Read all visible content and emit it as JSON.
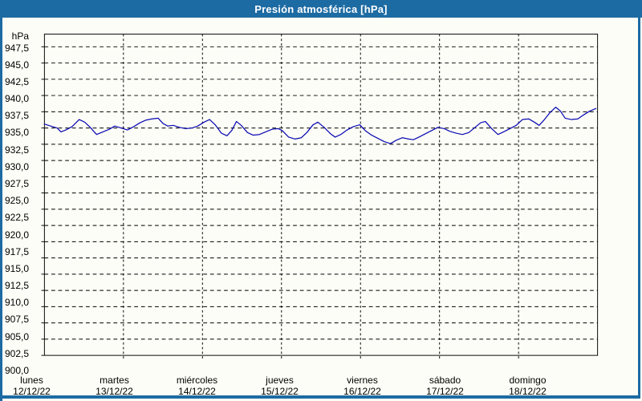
{
  "window": {
    "title": "Presión atmosférica [hPa]"
  },
  "colors": {
    "titlebar_bg": "#1d6ba3",
    "titlebar_text": "#ffffff",
    "panel_border": "#1d6ba3",
    "panel_bg": "#fdfdf7",
    "grid": "#000000",
    "label_text": "#000000",
    "line": "#0a0ab4"
  },
  "chart_data": {
    "type": "line",
    "title": "Presión atmosférica [hPa]",
    "y_unit_label": "hPa",
    "grid": "dashed",
    "legend": "none",
    "y_axis": {
      "min": 900.0,
      "max": 947.5,
      "step": 2.5,
      "tick_labels": [
        "947,5",
        "945,0",
        "942,5",
        "940,0",
        "937,5",
        "935,0",
        "932,5",
        "930,0",
        "927,5",
        "925,0",
        "922,5",
        "920,0",
        "917,5",
        "915,0",
        "912,5",
        "910,0",
        "907,5",
        "905,0",
        "902,5",
        "900,0"
      ]
    },
    "x_axis": {
      "span_days": 7,
      "ticks": [
        {
          "day": "lunes",
          "date": "12/12/22"
        },
        {
          "day": "martes",
          "date": "13/12/22"
        },
        {
          "day": "miércoles",
          "date": "14/12/22"
        },
        {
          "day": "jueves",
          "date": "15/12/22"
        },
        {
          "day": "viernes",
          "date": "16/12/22"
        },
        {
          "day": "sábado",
          "date": "17/12/22"
        },
        {
          "day": "domingo",
          "date": "18/12/22"
        }
      ]
    },
    "series": [
      {
        "name": "Presión atmosférica",
        "unit": "hPa",
        "color": "#0a0ab4",
        "points_time_days": [
          0,
          0.08,
          0.16,
          0.21,
          0.27,
          0.35,
          0.44,
          0.51,
          0.58,
          0.66,
          0.74,
          0.82,
          0.89,
          0.97,
          1.05,
          1.13,
          1.21,
          1.28,
          1.36,
          1.44,
          1.5,
          1.56,
          1.63,
          1.71,
          1.79,
          1.87,
          1.94,
          2.02,
          2.09,
          2.16,
          2.24,
          2.31,
          2.37,
          2.43,
          2.49,
          2.57,
          2.64,
          2.72,
          2.8,
          2.88,
          2.96,
          3.01,
          3.09,
          3.17,
          3.25,
          3.32,
          3.4,
          3.46,
          3.54,
          3.62,
          3.68,
          3.75,
          3.83,
          3.91,
          3.99,
          4.06,
          4.14,
          4.22,
          4.3,
          4.38,
          4.45,
          4.53,
          4.61,
          4.67,
          4.74,
          4.82,
          4.9,
          4.98,
          5.06,
          5.13,
          5.21,
          5.29,
          5.37,
          5.44,
          5.52,
          5.58,
          5.66,
          5.74,
          5.81,
          5.89,
          5.97,
          6.05,
          6.13,
          6.2,
          6.26,
          6.32,
          6.4,
          6.47,
          6.53,
          6.59,
          6.67,
          6.75,
          6.82,
          6.9,
          6.96,
          6.98
        ],
        "points_hpa": [
          935.6,
          935.3,
          935.0,
          934.4,
          934.7,
          935.2,
          936.3,
          935.9,
          935.1,
          934.0,
          934.4,
          934.8,
          935.3,
          935.0,
          934.7,
          935.2,
          935.8,
          936.2,
          936.4,
          936.5,
          935.7,
          935.3,
          935.4,
          935.1,
          934.9,
          935.0,
          935.3,
          935.9,
          936.3,
          935.5,
          934.2,
          933.8,
          934.6,
          936.0,
          935.4,
          934.3,
          933.9,
          934.0,
          934.4,
          934.8,
          934.9,
          934.6,
          933.6,
          933.3,
          933.5,
          934.3,
          935.5,
          935.9,
          935.1,
          934.1,
          933.6,
          934.0,
          934.7,
          935.2,
          935.5,
          934.6,
          933.9,
          933.4,
          932.9,
          932.6,
          933.1,
          933.5,
          933.3,
          933.2,
          933.6,
          934.1,
          934.6,
          935.1,
          934.9,
          934.5,
          934.2,
          934.0,
          934.3,
          935.0,
          935.8,
          936.0,
          934.9,
          934.0,
          934.4,
          934.9,
          935.4,
          936.3,
          936.4,
          935.9,
          935.4,
          936.2,
          937.4,
          938.2,
          937.6,
          936.5,
          936.3,
          936.4,
          937.0,
          937.6,
          937.9,
          938.0
        ]
      }
    ]
  }
}
